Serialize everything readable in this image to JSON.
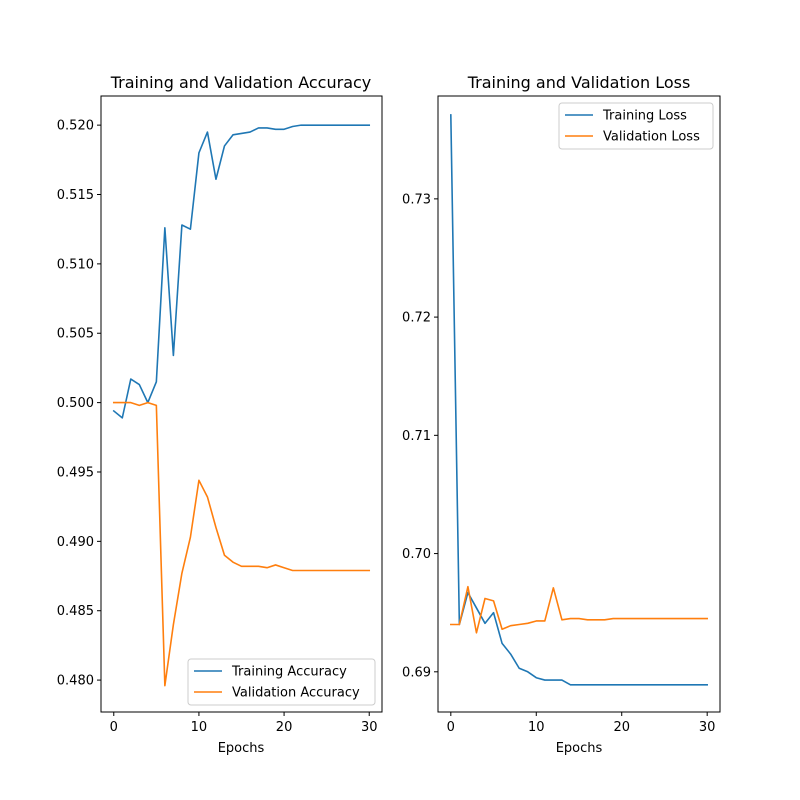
{
  "chart_data": [
    {
      "type": "line",
      "title": "Training and Validation Accuracy",
      "xlabel": "Epochs",
      "ylabel": "",
      "xlim": [
        -1.5,
        31.5
      ],
      "ylim": [
        0.4777,
        0.5221
      ],
      "xticks": [
        0,
        10,
        20,
        30
      ],
      "xtick_labels": [
        "0",
        "10",
        "20",
        "30"
      ],
      "yticks": [
        0.48,
        0.485,
        0.49,
        0.495,
        0.5,
        0.505,
        0.51,
        0.515,
        0.52
      ],
      "ytick_labels": [
        "0.480",
        "0.485",
        "0.490",
        "0.495",
        "0.500",
        "0.505",
        "0.510",
        "0.515",
        "0.520"
      ],
      "legend_position": "lower-right",
      "grid": false,
      "x": [
        0,
        1,
        2,
        3,
        4,
        5,
        6,
        7,
        8,
        9,
        10,
        11,
        12,
        13,
        14,
        15,
        16,
        17,
        18,
        19,
        20,
        21,
        22,
        23,
        24,
        25,
        26,
        27,
        28,
        29,
        30
      ],
      "series": [
        {
          "name": "Training Accuracy",
          "color": "#1f77b4",
          "values": [
            0.4994,
            0.4989,
            0.5017,
            0.5013,
            0.5,
            0.5015,
            0.5126,
            0.5034,
            0.5128,
            0.5125,
            0.518,
            0.5195,
            0.5161,
            0.5185,
            0.5193,
            0.5194,
            0.5195,
            0.5198,
            0.5198,
            0.5197,
            0.5197,
            0.5199,
            0.52,
            0.52,
            0.52,
            0.52,
            0.52,
            0.52,
            0.52,
            0.52,
            0.52
          ]
        },
        {
          "name": "Validation Accuracy",
          "color": "#ff7f0e",
          "values": [
            0.5,
            0.5,
            0.5,
            0.4998,
            0.5,
            0.4998,
            0.4796,
            0.484,
            0.4877,
            0.4903,
            0.4944,
            0.4932,
            0.491,
            0.489,
            0.4885,
            0.4882,
            0.4882,
            0.4882,
            0.4881,
            0.4883,
            0.4881,
            0.4879,
            0.4879,
            0.4879,
            0.4879,
            0.4879,
            0.4879,
            0.4879,
            0.4879,
            0.4879,
            0.4879
          ]
        }
      ]
    },
    {
      "type": "line",
      "title": "Training and Validation Loss",
      "xlabel": "Epochs",
      "ylabel": "",
      "xlim": [
        -1.5,
        31.5
      ],
      "ylim": [
        0.6866,
        0.7387
      ],
      "xticks": [
        0,
        10,
        20,
        30
      ],
      "xtick_labels": [
        "0",
        "10",
        "20",
        "30"
      ],
      "yticks": [
        0.69,
        0.7,
        0.71,
        0.72,
        0.73
      ],
      "ytick_labels": [
        "0.69",
        "0.70",
        "0.71",
        "0.72",
        "0.73"
      ],
      "legend_position": "upper-right",
      "grid": false,
      "x": [
        0,
        1,
        2,
        3,
        4,
        5,
        6,
        7,
        8,
        9,
        10,
        11,
        12,
        13,
        14,
        15,
        16,
        17,
        18,
        19,
        20,
        21,
        22,
        23,
        24,
        25,
        26,
        27,
        28,
        29,
        30
      ],
      "series": [
        {
          "name": "Training Loss",
          "color": "#1f77b4",
          "values": [
            0.7371,
            0.694,
            0.6967,
            0.6954,
            0.6941,
            0.695,
            0.6924,
            0.6915,
            0.6903,
            0.69,
            0.6895,
            0.6893,
            0.6893,
            0.6893,
            0.6889,
            0.6889,
            0.6889,
            0.6889,
            0.6889,
            0.6889,
            0.6889,
            0.6889,
            0.6889,
            0.6889,
            0.6889,
            0.6889,
            0.6889,
            0.6889,
            0.6889,
            0.6889,
            0.6889
          ]
        },
        {
          "name": "Validation Loss",
          "color": "#ff7f0e",
          "values": [
            0.694,
            0.694,
            0.6972,
            0.6933,
            0.6962,
            0.696,
            0.6936,
            0.6939,
            0.694,
            0.6941,
            0.6943,
            0.6943,
            0.6971,
            0.6944,
            0.6945,
            0.6945,
            0.6944,
            0.6944,
            0.6944,
            0.6945,
            0.6945,
            0.6945,
            0.6945,
            0.6945,
            0.6945,
            0.6945,
            0.6945,
            0.6945,
            0.6945,
            0.6945,
            0.6945
          ]
        }
      ]
    }
  ]
}
